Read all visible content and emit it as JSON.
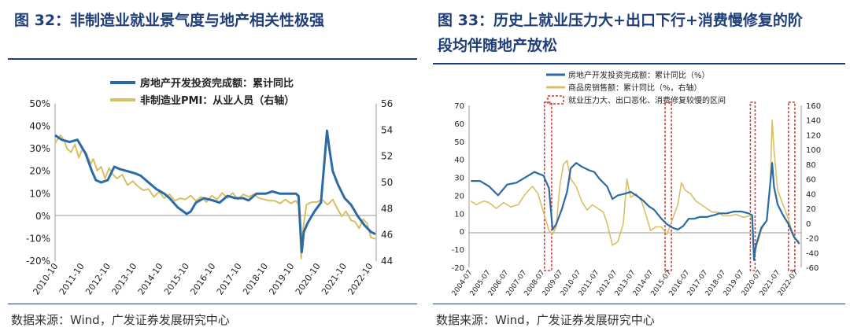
{
  "colors": {
    "blue": "#2b6ba5",
    "gold": "#d9bf63",
    "red": "#d93030",
    "title": "#1f3f7a"
  },
  "left": {
    "title": "图 32：非制造业就业景气度与地产相关性极强",
    "source": "数据来源：Wind，广发证券发展研究中心",
    "chart_data": {
      "type": "line",
      "title": "",
      "legend": [
        "房地产开发投资完成额：累计同比",
        "非制造业PMI：从业人员（右轴）"
      ],
      "y_left": {
        "ticks": [
          "50%",
          "40%",
          "30%",
          "20%",
          "10%",
          "0%",
          "-10%",
          "-20%"
        ],
        "range": [
          -20,
          50
        ]
      },
      "y_right": {
        "ticks": [
          "56",
          "54",
          "52",
          "50",
          "48",
          "46",
          "44"
        ],
        "range": [
          44,
          56
        ]
      },
      "x_ticks": [
        "2010-10",
        "2011-10",
        "2012-10",
        "2013-10",
        "2014-10",
        "2015-10",
        "2016-10",
        "2017-10",
        "2018-10",
        "2019-10",
        "2020-10",
        "2021-10",
        "2022-10"
      ],
      "x_range": [
        2010.75,
        2022.95
      ],
      "series": [
        {
          "name": "房地产开发投资完成额：累计同比",
          "axis": "left",
          "x": [
            2010.75,
            2011.0,
            2011.3,
            2011.6,
            2011.9,
            2012.15,
            2012.3,
            2012.5,
            2012.75,
            2013.0,
            2013.2,
            2013.5,
            2013.8,
            2014.0,
            2014.3,
            2014.6,
            2014.9,
            2015.1,
            2015.4,
            2015.75,
            2015.9,
            2016.1,
            2016.4,
            2016.75,
            2017.0,
            2017.3,
            2017.6,
            2017.9,
            2018.1,
            2018.4,
            2018.75,
            2019.0,
            2019.3,
            2019.6,
            2019.9,
            2020.0,
            2020.12,
            2020.2,
            2020.35,
            2020.6,
            2020.85,
            2021.08,
            2021.17,
            2021.3,
            2021.5,
            2021.75,
            2022.0,
            2022.25,
            2022.5,
            2022.75,
            2022.92
          ],
          "y": [
            36,
            34,
            33,
            34,
            28,
            20,
            16,
            15,
            16,
            22,
            21,
            20,
            19,
            18,
            15,
            12,
            10,
            8,
            4,
            1,
            2,
            6,
            8,
            7,
            6,
            9,
            8,
            8,
            7,
            10,
            10,
            11,
            10,
            10,
            10,
            9,
            -16,
            -7,
            -3,
            2,
            6,
            38,
            30,
            20,
            14,
            8,
            5,
            0,
            -4,
            -7,
            -8
          ]
        },
        {
          "name": "非制造业PMI：从业人员（右轴）",
          "axis": "right",
          "x": [
            2010.75,
            2010.95,
            2011.1,
            2011.2,
            2011.35,
            2011.5,
            2011.65,
            2011.8,
            2011.95,
            2012.1,
            2012.2,
            2012.35,
            2012.5,
            2012.65,
            2012.8,
            2012.95,
            2013.1,
            2013.3,
            2013.5,
            2013.7,
            2013.9,
            2014.1,
            2014.3,
            2014.5,
            2014.7,
            2014.9,
            2015.1,
            2015.3,
            2015.5,
            2015.7,
            2015.9,
            2016.1,
            2016.3,
            2016.5,
            2016.7,
            2016.9,
            2017.1,
            2017.3,
            2017.5,
            2017.7,
            2017.9,
            2018.1,
            2018.3,
            2018.5,
            2018.7,
            2018.9,
            2019.1,
            2019.3,
            2019.5,
            2019.7,
            2019.9,
            2020.0,
            2020.1,
            2020.18,
            2020.3,
            2020.5,
            2020.7,
            2020.9,
            2021.1,
            2021.3,
            2021.5,
            2021.65,
            2021.8,
            2022.0,
            2022.15,
            2022.3,
            2022.45,
            2022.6,
            2022.75,
            2022.92
          ],
          "y": [
            53.0,
            53.6,
            53.2,
            52.6,
            52.3,
            52.9,
            51.9,
            52.6,
            52.2,
            51.4,
            51.8,
            50.9,
            51.2,
            50.3,
            51.1,
            50.6,
            50.3,
            50.6,
            49.8,
            50.1,
            49.7,
            49.4,
            49.5,
            48.9,
            49.3,
            48.8,
            49.1,
            48.6,
            48.8,
            48.7,
            49.0,
            48.6,
            48.9,
            48.5,
            49.0,
            48.7,
            49.2,
            48.8,
            49.2,
            48.7,
            49.1,
            48.9,
            49.1,
            48.8,
            48.7,
            48.6,
            48.6,
            48.4,
            48.7,
            48.4,
            48.6,
            48.3,
            44.2,
            46.6,
            48.3,
            48.5,
            48.5,
            48.7,
            48.3,
            48.7,
            47.9,
            47.4,
            47.8,
            47.1,
            47.0,
            46.5,
            47.2,
            46.9,
            45.8,
            45.7
          ]
        }
      ]
    }
  },
  "right": {
    "title_line1": "图 33：历史上就业压力大+出口下行+消费慢修复的阶",
    "title_line2": "段均伴随地产放松",
    "source": "数据来源：Wind，广发证券发展研究中心",
    "chart_data": {
      "type": "line",
      "title": "",
      "legend": [
        "房地产开发投资完成额：累计同比（%）",
        "商品房销售额：累计同比（%，右轴）",
        "就业压力大、出口恶化、消费修复较慢的区间"
      ],
      "y_left": {
        "ticks": [
          "70",
          "60",
          "50",
          "40",
          "30",
          "20",
          "10",
          "0",
          "-10",
          "-20"
        ],
        "range": [
          -20,
          70
        ]
      },
      "y_right": {
        "ticks": [
          "160",
          "140",
          "120",
          "100",
          "80",
          "60",
          "40",
          "20",
          "0",
          "-20",
          "-40",
          "-60"
        ],
        "range": [
          -60,
          160
        ]
      },
      "x_ticks": [
        "2004-07",
        "2005-07",
        "2006-07",
        "2007-07",
        "2008-07",
        "2009-07",
        "2010-07",
        "2011-07",
        "2012-07",
        "2013-07",
        "2014-07",
        "2015-07",
        "2016-07",
        "2017-07",
        "2018-07",
        "2019-07",
        "2020-07",
        "2021-07",
        "2022-07"
      ],
      "x_range": [
        2004.4,
        2022.7
      ],
      "shaded_intervals": [
        [
          2008.55,
          2008.95
        ],
        [
          2015.2,
          2015.55
        ],
        [
          2019.9,
          2020.15
        ],
        [
          2022.0,
          2022.35
        ]
      ],
      "series": [
        {
          "name": "房地产开发投资完成额：累计同比（%）",
          "axis": "left",
          "x": [
            2004.5,
            2005.0,
            2005.5,
            2006.0,
            2006.5,
            2007.0,
            2007.5,
            2008.0,
            2008.5,
            2008.8,
            2009.0,
            2009.2,
            2009.5,
            2009.8,
            2010.0,
            2010.3,
            2010.6,
            2011.0,
            2011.3,
            2011.6,
            2012.0,
            2012.3,
            2012.6,
            2013.0,
            2013.3,
            2013.6,
            2014.0,
            2014.3,
            2014.6,
            2015.0,
            2015.3,
            2015.6,
            2015.9,
            2016.2,
            2016.5,
            2016.8,
            2017.1,
            2017.5,
            2017.9,
            2018.2,
            2018.6,
            2019.0,
            2019.4,
            2019.8,
            2020.0,
            2020.1,
            2020.2,
            2020.5,
            2020.8,
            2021.1,
            2021.2,
            2021.4,
            2021.7,
            2022.0,
            2022.3,
            2022.6
          ],
          "y": [
            28,
            28,
            25,
            20,
            26,
            27,
            30,
            33,
            31,
            24,
            1,
            4,
            12,
            22,
            35,
            38,
            36,
            34,
            33,
            29,
            25,
            18,
            20,
            21,
            22,
            20,
            17,
            14,
            12,
            7,
            4,
            2,
            1,
            3,
            7,
            7,
            8,
            8,
            9,
            10,
            10,
            11,
            11,
            10,
            9,
            -16,
            -8,
            2,
            6,
            38,
            25,
            15,
            9,
            4,
            -3,
            -7
          ]
        },
        {
          "name": "商品房销售额：累计同比（%，右轴）",
          "axis": "right",
          "x": [
            2004.5,
            2004.8,
            2005.2,
            2005.5,
            2005.9,
            2006.3,
            2006.7,
            2007.1,
            2007.5,
            2007.9,
            2008.2,
            2008.5,
            2008.8,
            2009.0,
            2009.2,
            2009.4,
            2009.6,
            2009.8,
            2010.0,
            2010.3,
            2010.6,
            2010.9,
            2011.2,
            2011.5,
            2011.8,
            2012.0,
            2012.3,
            2012.6,
            2012.9,
            2013.1,
            2013.3,
            2013.6,
            2013.9,
            2014.1,
            2014.4,
            2014.7,
            2015.0,
            2015.3,
            2015.6,
            2015.9,
            2016.1,
            2016.3,
            2016.6,
            2016.9,
            2017.2,
            2017.5,
            2017.8,
            2018.1,
            2018.4,
            2018.8,
            2019.1,
            2019.5,
            2019.9,
            2020.0,
            2020.1,
            2020.2,
            2020.5,
            2020.8,
            2021.0,
            2021.1,
            2021.2,
            2021.4,
            2021.7,
            2022.0,
            2022.3,
            2022.6
          ],
          "y": [
            30,
            25,
            30,
            28,
            20,
            28,
            22,
            25,
            40,
            50,
            40,
            15,
            -10,
            -15,
            -5,
            50,
            80,
            85,
            60,
            50,
            30,
            18,
            25,
            20,
            15,
            0,
            -30,
            -25,
            0,
            60,
            35,
            40,
            30,
            15,
            -10,
            -5,
            -5,
            -15,
            5,
            25,
            55,
            45,
            40,
            30,
            25,
            20,
            15,
            15,
            10,
            10,
            12,
            8,
            10,
            6,
            -40,
            -35,
            -10,
            5,
            55,
            140,
            100,
            45,
            25,
            5,
            -20,
            -25
          ]
        }
      ]
    }
  }
}
